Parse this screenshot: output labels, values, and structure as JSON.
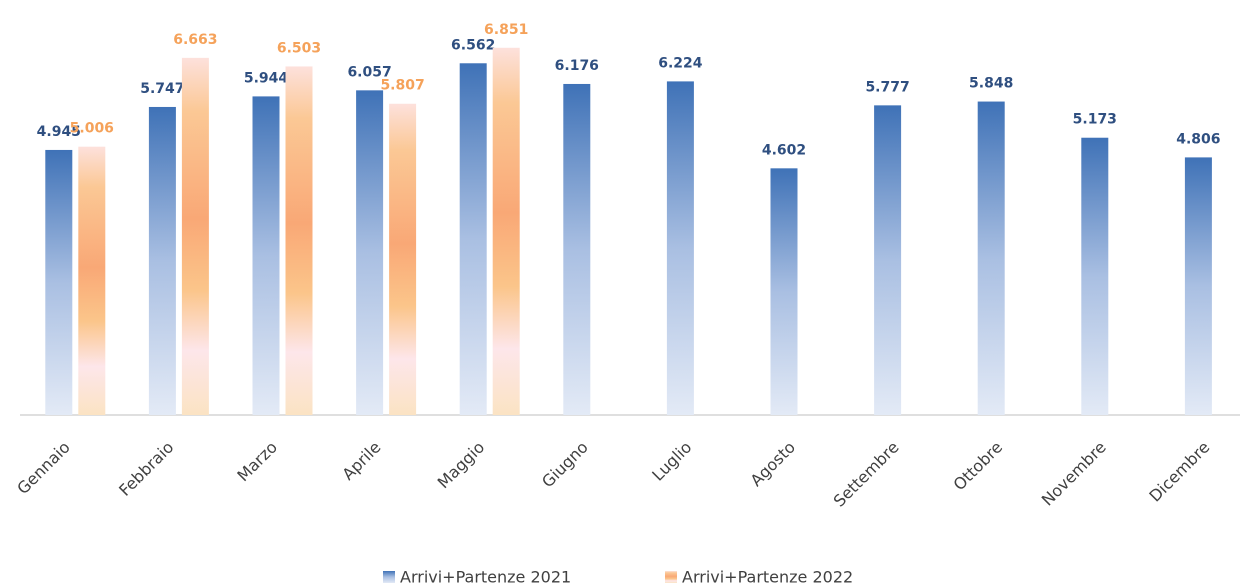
{
  "chart_data": {
    "type": "bar",
    "categories": [
      "Gennaio",
      "Febbraio",
      "Marzo",
      "Aprile",
      "Maggio",
      "Giugno",
      "Luglio",
      "Agosto",
      "Settembre",
      "Ottobre",
      "Novembre",
      "Dicembre"
    ],
    "series": [
      {
        "name": "Arrivi+Partenze 2021",
        "color": "#4472c4",
        "values": [
          4945,
          5747,
          5944,
          6057,
          6562,
          6176,
          6224,
          4602,
          5777,
          5848,
          5173,
          4806
        ],
        "value_labels": [
          "4.945",
          "5.747",
          "5.944",
          "6.057",
          "6.562",
          "6.176",
          "6.224",
          "4.602",
          "5.777",
          "5.848",
          "5.173",
          "4.806"
        ]
      },
      {
        "name": "Arrivi+Partenze 2022",
        "color": "#ed7d31",
        "values": [
          5006,
          6663,
          6503,
          5807,
          6851,
          null,
          null,
          null,
          null,
          null,
          null,
          null
        ],
        "value_labels": [
          "5.006",
          "6.663",
          "6.503",
          "5.807",
          "6.851",
          null,
          null,
          null,
          null,
          null,
          null,
          null
        ]
      }
    ],
    "ylim": [
      0,
      7500
    ]
  }
}
